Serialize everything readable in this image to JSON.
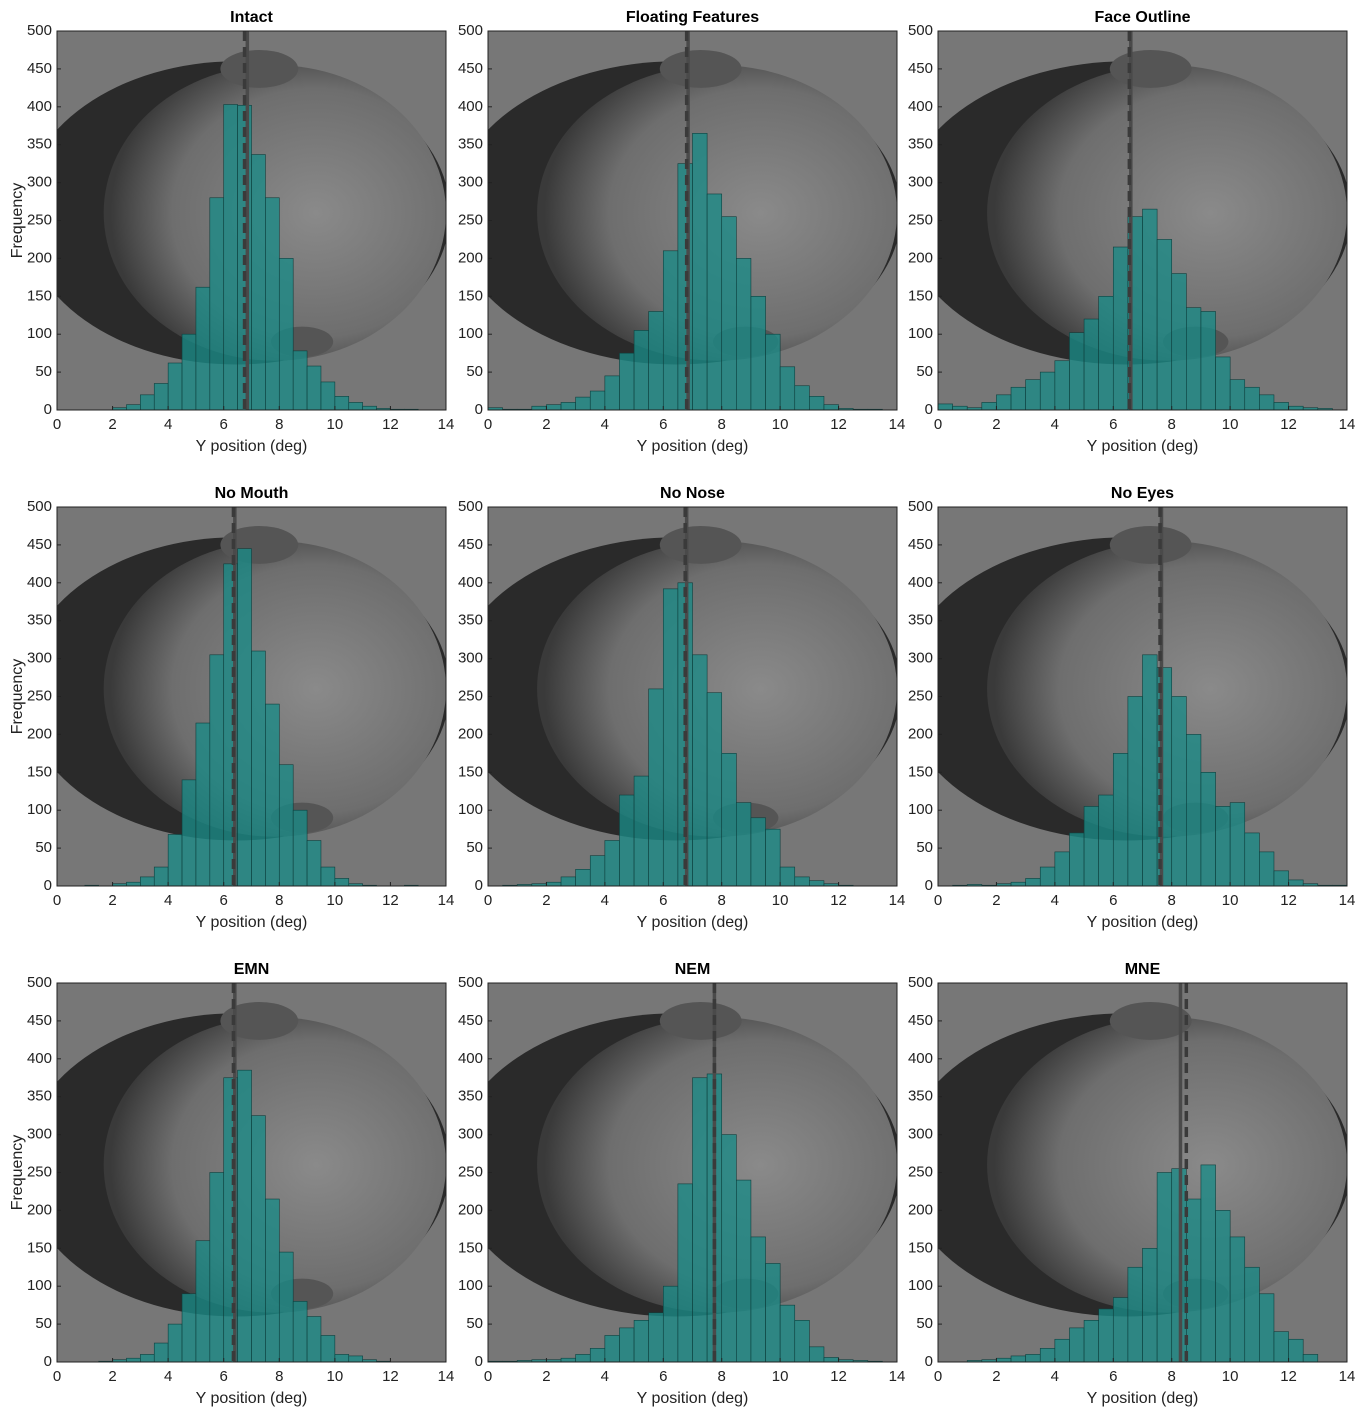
{
  "chart_data": [
    {
      "type": "histogram",
      "title": "Intact",
      "xlabel": "Y position (deg)",
      "ylabel": "Frequency",
      "color": "#1a8a86",
      "bins": [
        0,
        0.5,
        1,
        1.5,
        2,
        2.5,
        3,
        3.5,
        4,
        4.5,
        5,
        5.5,
        6,
        6.5,
        7,
        7.5,
        8,
        8.5,
        9,
        9.5,
        10,
        10.5,
        11,
        11.5,
        12,
        12.5,
        13,
        13.5,
        14
      ],
      "values": [
        0,
        0,
        0,
        0,
        3,
        7,
        20,
        35,
        62,
        100,
        162,
        280,
        403,
        402,
        337,
        280,
        200,
        78,
        58,
        37,
        18,
        10,
        5,
        2,
        1,
        1,
        0,
        0
      ],
      "vlines": [
        {
          "x": 6.85,
          "style": "solid"
        },
        {
          "x": 6.75,
          "style": "dashed"
        }
      ],
      "xlim": [
        0,
        14
      ],
      "ylim": [
        0,
        500
      ],
      "xticks": [
        0,
        2,
        4,
        6,
        8,
        10,
        12,
        14
      ],
      "yticks": [
        0,
        50,
        100,
        150,
        200,
        250,
        300,
        350,
        400,
        450,
        500
      ]
    },
    {
      "type": "histogram",
      "title": "Floating Features",
      "xlabel": "Y position (deg)",
      "color": "#1a8a86",
      "bins": [
        0,
        0.5,
        1,
        1.5,
        2,
        2.5,
        3,
        3.5,
        4,
        4.5,
        5,
        5.5,
        6,
        6.5,
        7,
        7.5,
        8,
        8.5,
        9,
        9.5,
        10,
        10.5,
        11,
        11.5,
        12,
        12.5,
        13,
        13.5,
        14
      ],
      "values": [
        3,
        1,
        1,
        5,
        7,
        10,
        17,
        25,
        45,
        75,
        105,
        130,
        210,
        325,
        365,
        285,
        255,
        200,
        150,
        100,
        57,
        32,
        18,
        7,
        2,
        1,
        1,
        0
      ],
      "vlines": [
        {
          "x": 6.85,
          "style": "solid"
        },
        {
          "x": 6.8,
          "style": "dashed"
        }
      ],
      "xlim": [
        0,
        14
      ],
      "ylim": [
        0,
        500
      ],
      "xticks": [
        0,
        2,
        4,
        6,
        8,
        10,
        12,
        14
      ],
      "yticks": [
        0,
        50,
        100,
        150,
        200,
        250,
        300,
        350,
        400,
        450,
        500
      ]
    },
    {
      "type": "histogram",
      "title": "Face Outline",
      "xlabel": "Y position (deg)",
      "color": "#1a8a86",
      "bins": [
        0,
        0.5,
        1,
        1.5,
        2,
        2.5,
        3,
        3.5,
        4,
        4.5,
        5,
        5.5,
        6,
        6.5,
        7,
        7.5,
        8,
        8.5,
        9,
        9.5,
        10,
        10.5,
        11,
        11.5,
        12,
        12.5,
        13,
        13.5,
        14
      ],
      "values": [
        8,
        5,
        3,
        10,
        20,
        30,
        40,
        50,
        65,
        102,
        120,
        150,
        215,
        255,
        265,
        225,
        180,
        135,
        130,
        70,
        40,
        30,
        20,
        10,
        5,
        3,
        2,
        0
      ],
      "vlines": [
        {
          "x": 6.6,
          "style": "solid"
        },
        {
          "x": 6.55,
          "style": "dashed"
        }
      ],
      "xlim": [
        0,
        14
      ],
      "ylim": [
        0,
        500
      ],
      "xticks": [
        0,
        2,
        4,
        6,
        8,
        10,
        12,
        14
      ],
      "yticks": [
        0,
        50,
        100,
        150,
        200,
        250,
        300,
        350,
        400,
        450,
        500
      ]
    },
    {
      "type": "histogram",
      "title": "No Mouth",
      "xlabel": "Y position (deg)",
      "ylabel": "Frequency",
      "color": "#1a8a86",
      "bins": [
        0,
        0.5,
        1,
        1.5,
        2,
        2.5,
        3,
        3.5,
        4,
        4.5,
        5,
        5.5,
        6,
        6.5,
        7,
        7.5,
        8,
        8.5,
        9,
        9.5,
        10,
        10.5,
        11,
        11.5,
        12,
        12.5,
        13,
        13.5,
        14
      ],
      "values": [
        0,
        0,
        1,
        0,
        3,
        5,
        12,
        25,
        68,
        140,
        215,
        305,
        425,
        445,
        310,
        240,
        160,
        100,
        60,
        25,
        10,
        3,
        1,
        0,
        0,
        1,
        0,
        0
      ],
      "vlines": [
        {
          "x": 6.4,
          "style": "solid"
        },
        {
          "x": 6.35,
          "style": "dashed"
        }
      ],
      "xlim": [
        0,
        14
      ],
      "ylim": [
        0,
        500
      ],
      "xticks": [
        0,
        2,
        4,
        6,
        8,
        10,
        12,
        14
      ],
      "yticks": [
        0,
        50,
        100,
        150,
        200,
        250,
        300,
        350,
        400,
        450,
        500
      ]
    },
    {
      "type": "histogram",
      "title": "No Nose",
      "xlabel": "Y position (deg)",
      "color": "#1a8a86",
      "bins": [
        0,
        0.5,
        1,
        1.5,
        2,
        2.5,
        3,
        3.5,
        4,
        4.5,
        5,
        5.5,
        6,
        6.5,
        7,
        7.5,
        8,
        8.5,
        9,
        9.5,
        10,
        10.5,
        11,
        11.5,
        12,
        12.5,
        13,
        13.5,
        14
      ],
      "values": [
        0,
        1,
        2,
        3,
        5,
        12,
        22,
        40,
        60,
        120,
        145,
        260,
        392,
        400,
        305,
        255,
        175,
        110,
        90,
        75,
        25,
        12,
        7,
        3,
        1,
        0,
        0,
        0
      ],
      "vlines": [
        {
          "x": 6.8,
          "style": "solid"
        },
        {
          "x": 6.75,
          "style": "dashed"
        }
      ],
      "xlim": [
        0,
        14
      ],
      "ylim": [
        0,
        500
      ],
      "xticks": [
        0,
        2,
        4,
        6,
        8,
        10,
        12,
        14
      ],
      "yticks": [
        0,
        50,
        100,
        150,
        200,
        250,
        300,
        350,
        400,
        450,
        500
      ]
    },
    {
      "type": "histogram",
      "title": "No Eyes",
      "xlabel": "Y position (deg)",
      "color": "#1a8a86",
      "bins": [
        0,
        0.5,
        1,
        1.5,
        2,
        2.5,
        3,
        3.5,
        4,
        4.5,
        5,
        5.5,
        6,
        6.5,
        7,
        7.5,
        8,
        8.5,
        9,
        9.5,
        10,
        10.5,
        11,
        11.5,
        12,
        12.5,
        13,
        13.5,
        14
      ],
      "values": [
        0,
        1,
        2,
        1,
        3,
        5,
        10,
        25,
        45,
        70,
        105,
        120,
        175,
        250,
        305,
        288,
        250,
        200,
        150,
        105,
        110,
        70,
        45,
        20,
        8,
        3,
        1,
        1
      ],
      "vlines": [
        {
          "x": 7.65,
          "style": "solid"
        },
        {
          "x": 7.6,
          "style": "dashed"
        }
      ],
      "xlim": [
        0,
        14
      ],
      "ylim": [
        0,
        500
      ],
      "xticks": [
        0,
        2,
        4,
        6,
        8,
        10,
        12,
        14
      ],
      "yticks": [
        0,
        50,
        100,
        150,
        200,
        250,
        300,
        350,
        400,
        450,
        500
      ]
    },
    {
      "type": "histogram",
      "title": "EMN",
      "xlabel": "Y position (deg)",
      "ylabel": "Frequency",
      "color": "#1a8a86",
      "bins": [
        0,
        0.5,
        1,
        1.5,
        2,
        2.5,
        3,
        3.5,
        4,
        4.5,
        5,
        5.5,
        6,
        6.5,
        7,
        7.5,
        8,
        8.5,
        9,
        9.5,
        10,
        10.5,
        11,
        11.5,
        12,
        12.5,
        13,
        13.5,
        14
      ],
      "values": [
        0,
        0,
        0,
        1,
        3,
        5,
        10,
        25,
        50,
        90,
        160,
        250,
        375,
        385,
        325,
        215,
        145,
        80,
        60,
        35,
        10,
        8,
        3,
        1,
        0,
        0,
        0,
        0
      ],
      "vlines": [
        {
          "x": 6.4,
          "style": "solid"
        },
        {
          "x": 6.35,
          "style": "dashed"
        }
      ],
      "xlim": [
        0,
        14
      ],
      "ylim": [
        0,
        500
      ],
      "xticks": [
        0,
        2,
        4,
        6,
        8,
        10,
        12,
        14
      ],
      "yticks": [
        0,
        50,
        100,
        150,
        200,
        250,
        300,
        350,
        400,
        450,
        500
      ]
    },
    {
      "type": "histogram",
      "title": "NEM",
      "xlabel": "Y position (deg)",
      "color": "#1a8a86",
      "bins": [
        0,
        0.5,
        1,
        1.5,
        2,
        2.5,
        3,
        3.5,
        4,
        4.5,
        5,
        5.5,
        6,
        6.5,
        7,
        7.5,
        8,
        8.5,
        9,
        9.5,
        10,
        10.5,
        11,
        11.5,
        12,
        12.5,
        13,
        13.5,
        14
      ],
      "values": [
        1,
        1,
        2,
        3,
        3,
        5,
        10,
        18,
        35,
        45,
        55,
        65,
        100,
        235,
        375,
        380,
        300,
        240,
        165,
        130,
        75,
        55,
        20,
        6,
        3,
        2,
        1,
        0
      ],
      "vlines": [
        {
          "x": 7.75,
          "style": "solid"
        },
        {
          "x": 7.75,
          "style": "dashed"
        }
      ],
      "xlim": [
        0,
        14
      ],
      "ylim": [
        0,
        500
      ],
      "xticks": [
        0,
        2,
        4,
        6,
        8,
        10,
        12,
        14
      ],
      "yticks": [
        0,
        50,
        100,
        150,
        200,
        250,
        300,
        350,
        400,
        450,
        500
      ]
    },
    {
      "type": "histogram",
      "title": "MNE",
      "xlabel": "Y position (deg)",
      "color": "#1a8a86",
      "bins": [
        0,
        0.5,
        1,
        1.5,
        2,
        2.5,
        3,
        3.5,
        4,
        4.5,
        5,
        5.5,
        6,
        6.5,
        7,
        7.5,
        8,
        8.5,
        9,
        9.5,
        10,
        10.5,
        11,
        11.5,
        12,
        12.5,
        13,
        13.5,
        14
      ],
      "values": [
        0,
        0,
        2,
        3,
        5,
        8,
        10,
        18,
        30,
        45,
        55,
        70,
        85,
        125,
        150,
        250,
        255,
        215,
        260,
        200,
        165,
        125,
        90,
        40,
        30,
        10,
        0,
        0
      ],
      "vlines": [
        {
          "x": 8.3,
          "style": "solid"
        },
        {
          "x": 8.5,
          "style": "dashed"
        }
      ],
      "xlim": [
        0,
        14
      ],
      "ylim": [
        0,
        500
      ],
      "xticks": [
        0,
        2,
        4,
        6,
        8,
        10,
        12,
        14
      ],
      "yticks": [
        0,
        50,
        100,
        150,
        200,
        250,
        300,
        350,
        400,
        450,
        500
      ]
    }
  ]
}
